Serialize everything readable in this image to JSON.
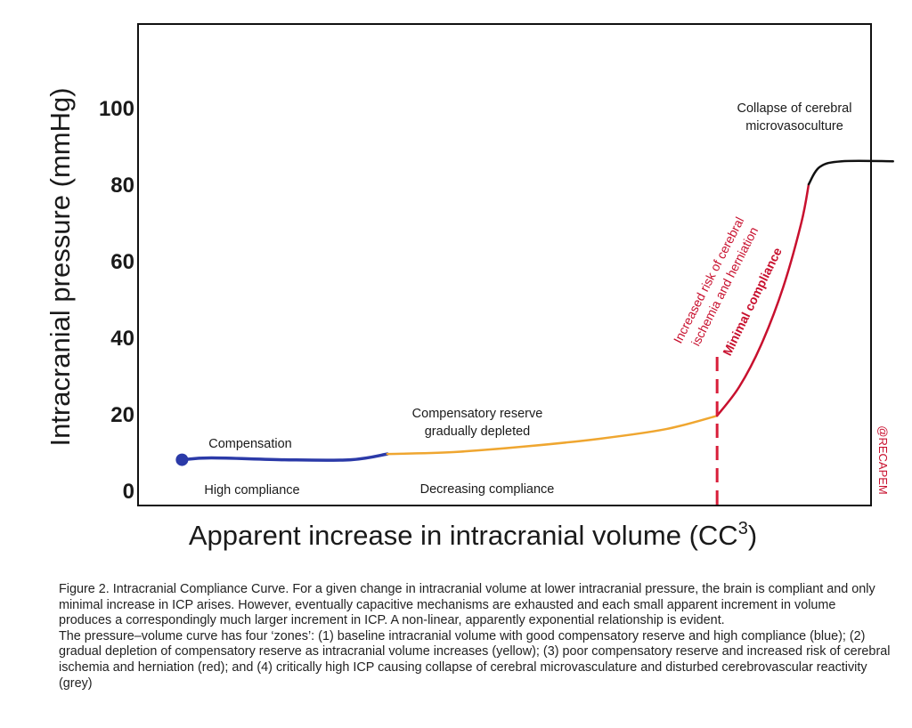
{
  "chart_data": {
    "type": "line",
    "title": "",
    "xlabel": "Apparent increase in intracranial volume (CC",
    "xlabel_sup": "3",
    "ylabel": "Intracranial pressure (mmHg)",
    "ylim": [
      0,
      120
    ],
    "xlim": [
      0,
      100
    ],
    "yticks": [
      {
        "value": 0,
        "label": "0"
      },
      {
        "value": 20,
        "label": "20"
      },
      {
        "value": 40,
        "label": "40"
      },
      {
        "value": 60,
        "label": "60"
      },
      {
        "value": 80,
        "label": "80"
      },
      {
        "value": 100,
        "label": "100"
      }
    ],
    "grid": false,
    "series": [
      {
        "key": "compensation",
        "color": "#2b3aa8",
        "x": [
          6,
          10,
          20,
          29,
          34
        ],
        "y": [
          8,
          8.5,
          8,
          8,
          9.5
        ]
      },
      {
        "key": "decreasing",
        "color": "#efa630",
        "x": [
          34,
          43,
          53,
          63,
          72,
          79
        ],
        "y": [
          9.5,
          10,
          11.5,
          13.5,
          16,
          19.5
        ]
      },
      {
        "key": "minimal",
        "color": "#c8102e",
        "x": [
          79,
          82,
          85,
          88,
          90.5,
          91.5
        ],
        "y": [
          19.5,
          27,
          38,
          53,
          70,
          80
        ]
      },
      {
        "key": "collapse",
        "color": "#111111",
        "x": [
          91.5,
          93,
          96,
          103
        ],
        "y": [
          80,
          84.5,
          86,
          86
        ]
      }
    ],
    "start_point": {
      "x": 6,
      "y": 8
    },
    "threshold_x": 79,
    "annotations": {
      "compensation": "Compensation",
      "high_compliance": "High compliance",
      "reserve_line1": "Compensatory reserve",
      "reserve_line2": "gradually depleted",
      "decreasing_compliance": "Decreasing compliance",
      "risk_line1": "Increased risk of cerebral",
      "risk_line2": "ischemia and herniation",
      "minimal_compliance": "Minimal compliance",
      "collapse_line1": "Collapse of cerebral",
      "collapse_line2": "microvasoculture",
      "watermark": "@RECAPEM"
    },
    "colors": {
      "blue": "#2b3aa8",
      "yellow": "#efa630",
      "red": "#c8102e",
      "black": "#111111"
    }
  },
  "caption": {
    "paragraph1": "Figure 2. Intracranial Compliance Curve.  For a given change in intracranial volume at lower intracranial pressure, the brain is compliant and only minimal increase in ICP arises.  However, eventually capacitive mechanisms are exhausted and each small apparent increment in volume produces a correspondingly much larger increment in ICP.  A non-linear, apparently exponential relationship is evident.",
    "paragraph2": "The pressure–volume curve has four ‘zones’: (1) baseline intracranial volume with good compensatory reserve and high compliance (blue); (2) gradual depletion of compensatory reserve as intracranial volume increases (yellow); (3) poor compensatory reserve and increased risk of cerebral ischemia and herniation (red); and (4) critically high ICP causing collapse of cerebral microvasculature and disturbed cerebrovascular reactivity (grey)"
  }
}
